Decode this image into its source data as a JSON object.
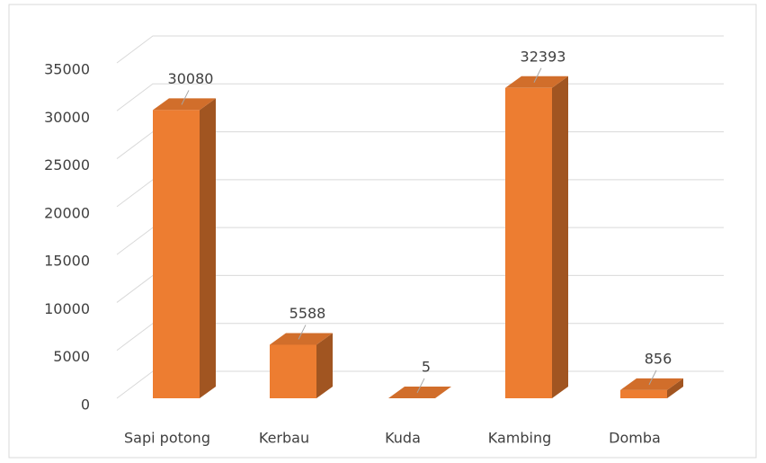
{
  "chart_data": {
    "type": "bar3d",
    "categories": [
      "Sapi potong",
      "Kerbau",
      "Kuda",
      "Kambing",
      "Domba"
    ],
    "values": [
      30080,
      5588,
      5,
      32393,
      856
    ],
    "color": "#ed7d31",
    "ylim": [
      0,
      35000
    ],
    "yticks": [
      0,
      5000,
      10000,
      15000,
      20000,
      25000,
      30000,
      35000
    ],
    "grid": true
  }
}
